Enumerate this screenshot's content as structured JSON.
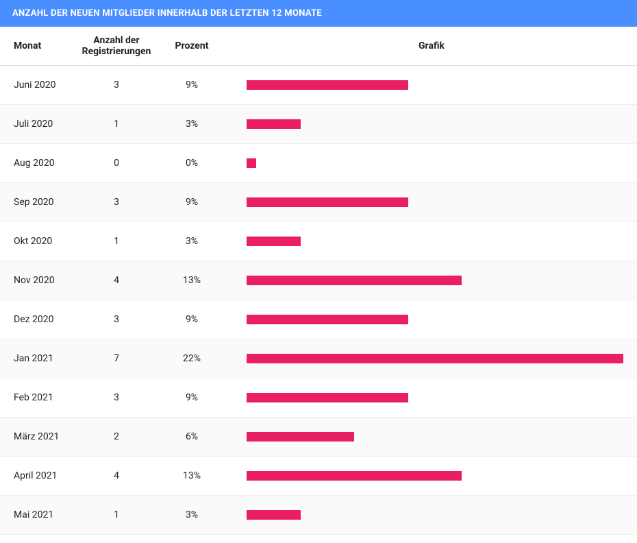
{
  "header": {
    "title": "ANZAHL DER NEUEN MITGLIEDER INNERHALB DER LETZTEN 12 MONATE",
    "background_color": "#4a8fff",
    "text_color": "#ffffff"
  },
  "table": {
    "columns": {
      "monat": "Monat",
      "anzahl": "Anzahl der Registrierungen",
      "prozent": "Prozent",
      "grafik": "Grafik"
    },
    "bar_color": "#e91e63",
    "max_value": 7,
    "rows": [
      {
        "monat": "Juni 2020",
        "anzahl": 3,
        "prozent": "9%",
        "bar_value": 3
      },
      {
        "monat": "Juli 2020",
        "anzahl": 1,
        "prozent": "3%",
        "bar_value": 1
      },
      {
        "monat": "Aug 2020",
        "anzahl": 0,
        "prozent": "0%",
        "bar_value": 0
      },
      {
        "monat": "Sep 2020",
        "anzahl": 3,
        "prozent": "9%",
        "bar_value": 3
      },
      {
        "monat": "Okt 2020",
        "anzahl": 1,
        "prozent": "3%",
        "bar_value": 1
      },
      {
        "monat": "Nov 2020",
        "anzahl": 4,
        "prozent": "13%",
        "bar_value": 4
      },
      {
        "monat": "Dez 2020",
        "anzahl": 3,
        "prozent": "9%",
        "bar_value": 3
      },
      {
        "monat": "Jan 2021",
        "anzahl": 7,
        "prozent": "22%",
        "bar_value": 7
      },
      {
        "monat": "Feb 2021",
        "anzahl": 3,
        "prozent": "9%",
        "bar_value": 3
      },
      {
        "monat": "März 2021",
        "anzahl": 2,
        "prozent": "6%",
        "bar_value": 2
      },
      {
        "monat": "April 2021",
        "anzahl": 4,
        "prozent": "13%",
        "bar_value": 4
      },
      {
        "monat": "Mai 2021",
        "anzahl": 1,
        "prozent": "3%",
        "bar_value": 1
      }
    ]
  }
}
